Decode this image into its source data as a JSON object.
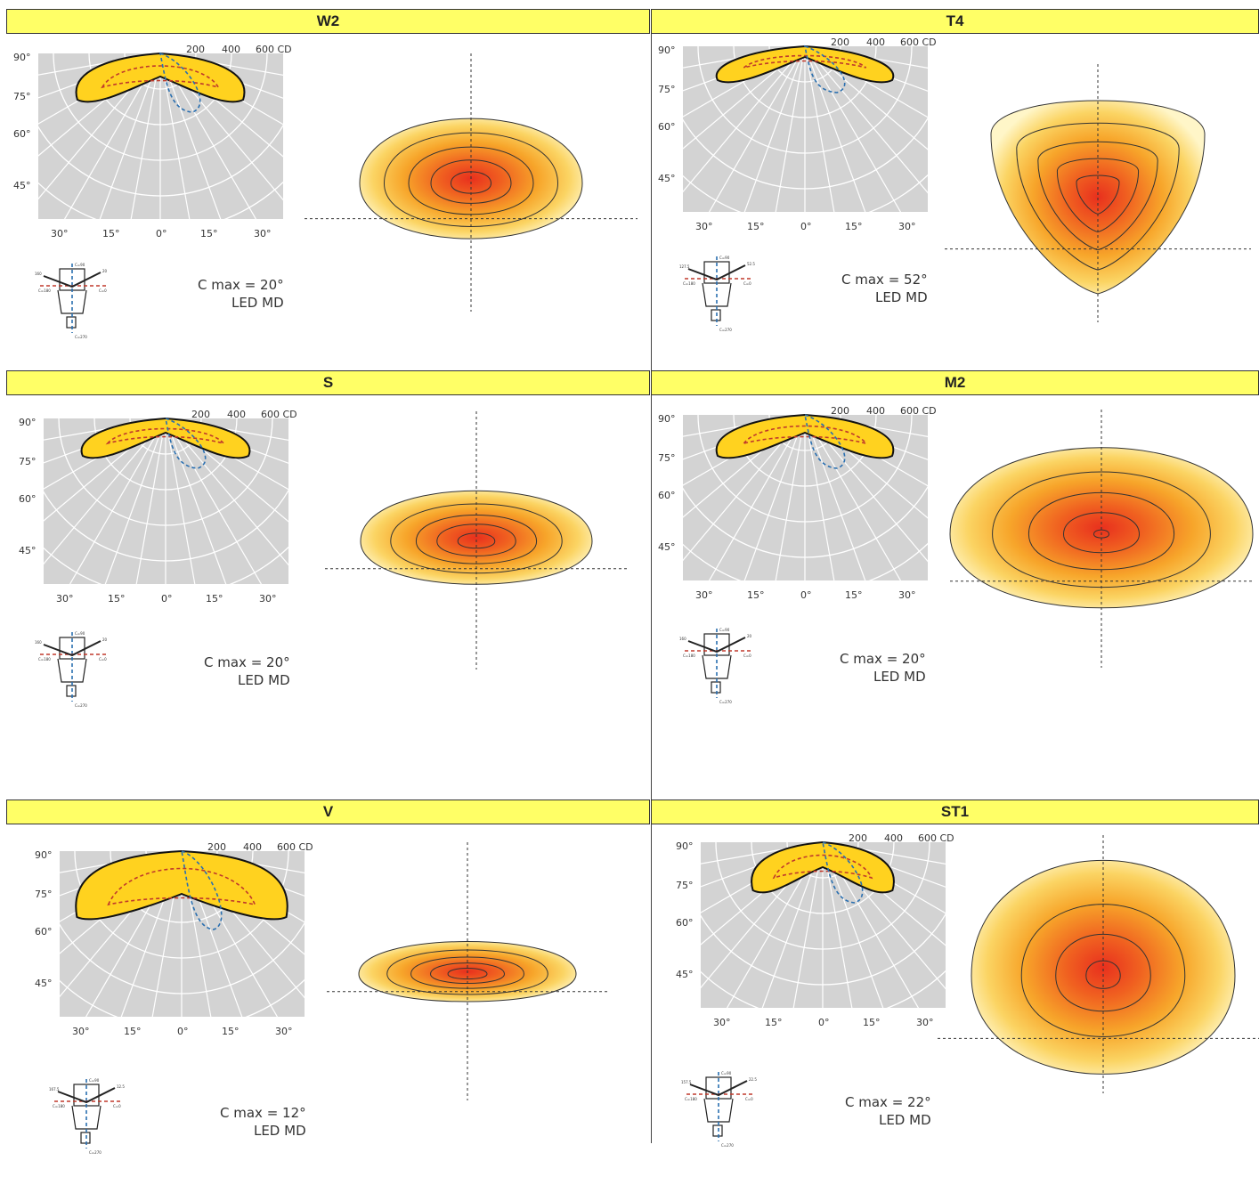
{
  "panels": [
    {
      "title": "W2",
      "cmax": "C max = 20°",
      "led": "LED MD",
      "mount_left": "160",
      "mount_right": "20"
    },
    {
      "title": "T4",
      "cmax": "C max = 52°",
      "led": "LED MD",
      "mount_left": "127.5",
      "mount_right": "52.5"
    },
    {
      "title": "S",
      "cmax": "C max = 20°",
      "led": "LED MD",
      "mount_left": "160",
      "mount_right": "20"
    },
    {
      "title": "M2",
      "cmax": "C max = 20°",
      "led": "LED MD",
      "mount_left": "160",
      "mount_right": "20"
    },
    {
      "title": "V",
      "cmax": "C max = 12°",
      "led": "LED MD",
      "mount_left": "167.5",
      "mount_right": "12.5"
    },
    {
      "title": "ST1",
      "cmax": "C max = 22°",
      "led": "LED MD",
      "mount_left": "157.5",
      "mount_right": "22.5"
    }
  ],
  "polar": {
    "cd_labels": [
      "200",
      "400",
      "600 CD"
    ],
    "angle_labels": [
      "90°",
      "75°",
      "60°",
      "45°"
    ],
    "bottom_labels": [
      "30°",
      "15°",
      "0°",
      "15°",
      "30°"
    ]
  },
  "mount": {
    "c90": "C=90",
    "c0": "C=0",
    "c180": "C=180",
    "c270": "C=270"
  },
  "colors": {
    "header": "#ffff66",
    "polar_bg": "#d3d3d3",
    "curve_fill": "#ffd21f",
    "curve_c0": "#c0392b",
    "curve_c90": "#2a6fb0"
  }
}
